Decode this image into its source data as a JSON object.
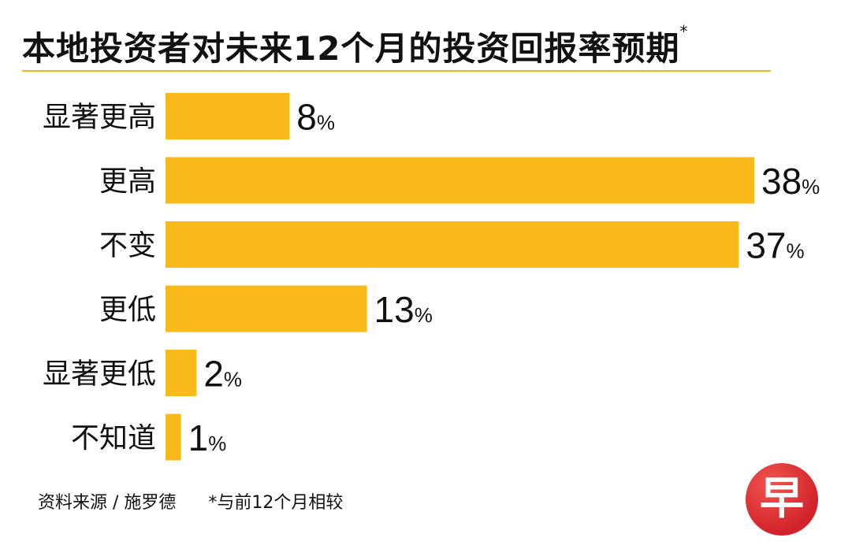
{
  "title": "本地投资者对未来12个月的投资回报率预期",
  "title_marker": "*",
  "chart_data": {
    "type": "bar",
    "orientation": "horizontal",
    "title": "本地投资者对未来12个月的投资回报率预期",
    "categories": [
      "显著更高",
      "更高",
      "不变",
      "更低",
      "显著更低",
      "不知道"
    ],
    "values": [
      8,
      38,
      37,
      13,
      2,
      1
    ],
    "value_suffix": "%",
    "xlim": [
      0,
      38
    ],
    "grid": false,
    "bar_color": "#f9b91b"
  },
  "footer": {
    "source": "资料来源 / 施罗德",
    "note": "*与前12个月相较"
  },
  "logo": {
    "text": "早",
    "color": "#d2232a"
  }
}
